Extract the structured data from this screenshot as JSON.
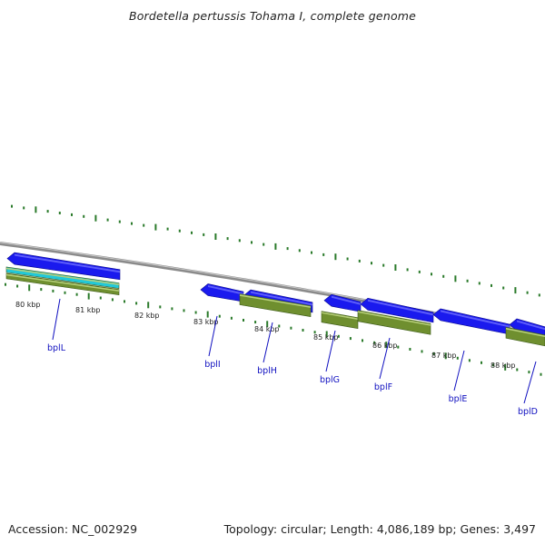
{
  "title": "Bordetella pertussis Tohama I, complete genome",
  "footer": {
    "accession": "Accession: NC_002929",
    "summary": "Topology: circular; Length: 4,086,189 bp; Genes: 3,497"
  },
  "colors": {
    "backbone": "#8a8a8a",
    "gene_forward": "#1a1aee",
    "gene_reverse": "#1a1aee",
    "cds": "#6f8f2f",
    "highlight": "#22c8d8",
    "ticks": "#2a7a2a",
    "label": "#1010c0"
  },
  "scale": {
    "tick_labels": [
      "80 kbp",
      "81 kbp",
      "82 kbp",
      "83 kbp",
      "84 kbp",
      "85 kbp",
      "86 kbp",
      "87 kbp",
      "88 kbp"
    ]
  },
  "genes": [
    {
      "name": "bplL"
    },
    {
      "name": "bplI"
    },
    {
      "name": "bplH"
    },
    {
      "name": "bplG"
    },
    {
      "name": "bplF"
    },
    {
      "name": "bplE"
    },
    {
      "name": "bplD"
    }
  ]
}
